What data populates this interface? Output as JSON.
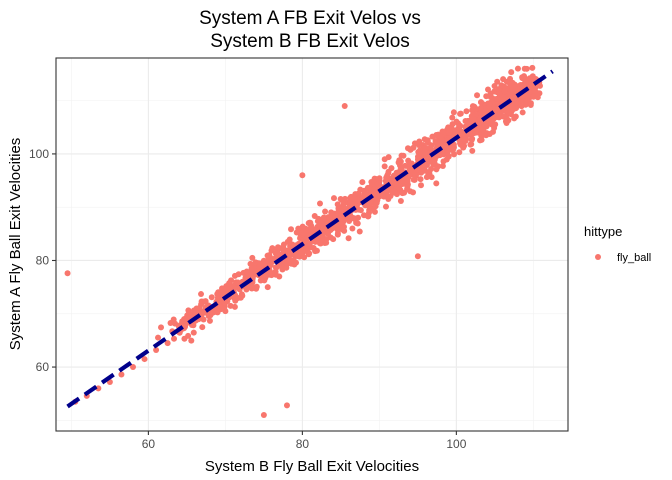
{
  "chart_data": {
    "type": "scatter",
    "title_line1": "System A FB Exit Velos vs",
    "title_line2": "System B FB Exit Velos",
    "xlabel": "System B Fly Ball Exit Velocities",
    "ylabel": "System A Fly Ball Exit Velocities",
    "xlim": [
      48,
      114.5
    ],
    "ylim": [
      48,
      118
    ],
    "x_ticks": [
      "60",
      "80",
      "100"
    ],
    "x_tick_values": [
      60,
      80,
      100
    ],
    "y_ticks": [
      "60",
      "80",
      "100"
    ],
    "y_tick_values": [
      60,
      80,
      100
    ],
    "grid": true,
    "legend": {
      "title": "hittype",
      "entries": [
        "fly_ball"
      ],
      "position": "right"
    },
    "series": [
      {
        "name": "fly_ball",
        "color": "#F8766D",
        "points": [
          [
            49.5,
            77.6
          ],
          [
            50.5,
            53.5
          ],
          [
            52.0,
            54.6
          ],
          [
            53.5,
            56.0
          ],
          [
            55.0,
            57.2
          ],
          [
            56.5,
            58.6
          ],
          [
            58.0,
            60.0
          ],
          [
            59.5,
            61.5
          ],
          [
            61.0,
            63.2
          ],
          [
            62.5,
            64.5
          ],
          [
            75.0,
            51.0
          ],
          [
            78.0,
            52.8
          ],
          [
            73.5,
            80.5
          ],
          [
            80.0,
            96.0
          ],
          [
            85.5,
            109.0
          ],
          [
            95.0,
            80.8
          ],
          [
            83.0,
            84.0
          ],
          [
            92.5,
            95.5
          ],
          [
            101.0,
            101.5
          ],
          [
            108.0,
            116.0
          ],
          [
            110.0,
            113.0
          ],
          [
            75.5,
            75.0
          ],
          [
            77.0,
            77.0
          ],
          [
            84.0,
            84.0
          ],
          [
            88.0,
            88.5
          ],
          [
            90.0,
            92.0
          ],
          [
            97.0,
            98.0
          ],
          [
            104.0,
            105.5
          ],
          [
            106.0,
            108.5
          ],
          [
            70.0,
            70.5
          ],
          [
            67.0,
            67.5
          ],
          [
            72.0,
            73.0
          ],
          [
            86.5,
            86.0
          ],
          [
            94.0,
            93.0
          ],
          [
            99.0,
            99.5
          ]
        ]
      },
      {
        "name": "",
        "color": "#00008B",
        "line_from": [
          49.5,
          52.6
        ],
        "line_to": [
          112.5,
          115.5
        ]
      }
    ]
  }
}
